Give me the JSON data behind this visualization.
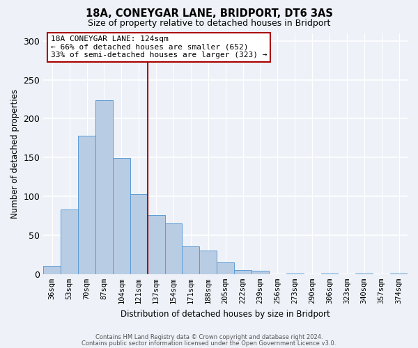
{
  "title": "18A, CONEYGAR LANE, BRIDPORT, DT6 3AS",
  "subtitle": "Size of property relative to detached houses in Bridport",
  "xlabel": "Distribution of detached houses by size in Bridport",
  "ylabel": "Number of detached properties",
  "bar_labels": [
    "36sqm",
    "53sqm",
    "70sqm",
    "87sqm",
    "104sqm",
    "121sqm",
    "137sqm",
    "154sqm",
    "171sqm",
    "188sqm",
    "205sqm",
    "222sqm",
    "239sqm",
    "256sqm",
    "273sqm",
    "290sqm",
    "306sqm",
    "323sqm",
    "340sqm",
    "357sqm",
    "374sqm"
  ],
  "bar_values": [
    11,
    83,
    178,
    224,
    149,
    103,
    76,
    65,
    36,
    30,
    15,
    5,
    4,
    0,
    1,
    0,
    1,
    0,
    1,
    0,
    1
  ],
  "bar_color": "#b8cce4",
  "bar_edge_color": "#5b9bd5",
  "property_line_index": 5,
  "property_line_color": "#aa0000",
  "ylim": [
    0,
    310
  ],
  "yticks": [
    0,
    50,
    100,
    150,
    200,
    250,
    300
  ],
  "annotation_title": "18A CONEYGAR LANE: 124sqm",
  "annotation_line1": "← 66% of detached houses are smaller (652)",
  "annotation_line2": "33% of semi-detached houses are larger (323) →",
  "annotation_box_color": "#ffffff",
  "annotation_box_edge": "#aa0000",
  "footnote1": "Contains HM Land Registry data © Crown copyright and database right 2024.",
  "footnote2": "Contains public sector information licensed under the Open Government Licence v3.0.",
  "background_color": "#eef2f8"
}
